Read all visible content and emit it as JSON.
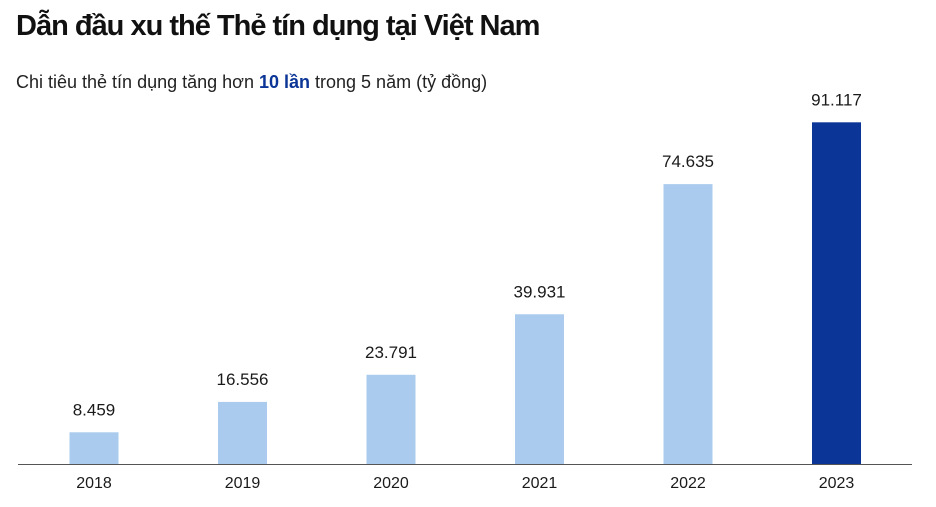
{
  "header": {
    "title": "Dẫn đầu xu thế Thẻ tín dụng tại Việt Nam",
    "subtitle_pre": "Chi tiêu thẻ tín dụng tăng hơn ",
    "subtitle_highlight": "10 lần",
    "subtitle_post": " trong 5 năm (tỷ đồng)"
  },
  "colors": {
    "bar": "#aacbed",
    "bar_highlight": "#0b3596",
    "highlight_text": "#0b3596",
    "axis": "#555555"
  },
  "chart_data": {
    "type": "bar",
    "categories": [
      "2018",
      "2019",
      "2020",
      "2021",
      "2022",
      "2023"
    ],
    "values": [
      8459,
      16556,
      23791,
      39931,
      74635,
      91117
    ],
    "value_labels": [
      "8.459",
      "16.556",
      "23.791",
      "39.931",
      "74.635",
      "91.117"
    ],
    "highlight_index": 5,
    "ylim": [
      0,
      100000
    ],
    "grid": false,
    "legend": "none"
  }
}
